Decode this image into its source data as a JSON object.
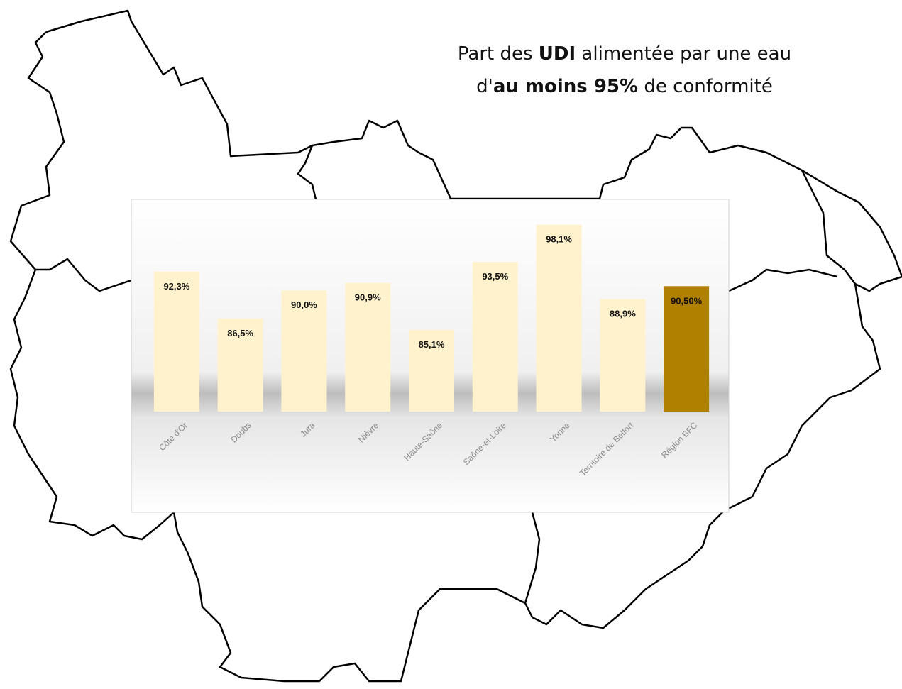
{
  "chart_data": {
    "type": "bar",
    "title_runs": [
      {
        "text": "Part des ",
        "bold": false
      },
      {
        "text": "UDI",
        "bold": true
      },
      {
        "text": " alimentée par une eau",
        "bold": false
      },
      {
        "text": "d'",
        "bold": false
      },
      {
        "text": "au moins 95%",
        "bold": true
      },
      {
        "text": " de conformité",
        "bold": false
      }
    ],
    "categories": [
      "Côte d'Or",
      "Doubs",
      "Jura",
      "Nièvre",
      "Haute-Saône",
      "Saône-et-Loire",
      "Yonne",
      "Territoire de Belfort",
      "Région BFC"
    ],
    "values": [
      92.3,
      86.5,
      90.0,
      90.9,
      85.1,
      93.5,
      98.1,
      88.9,
      90.5
    ],
    "value_labels": [
      "92,3%",
      "86,5%",
      "90,0%",
      "90,9%",
      "85,1%",
      "93,5%",
      "98,1%",
      "88,9%",
      "90,50%"
    ],
    "colors": [
      "#fff2cc",
      "#fff2cc",
      "#fff2cc",
      "#fff2cc",
      "#fff2cc",
      "#fff2cc",
      "#fff2cc",
      "#fff2cc",
      "#b08000"
    ],
    "ylim": [
      75,
      100
    ]
  }
}
